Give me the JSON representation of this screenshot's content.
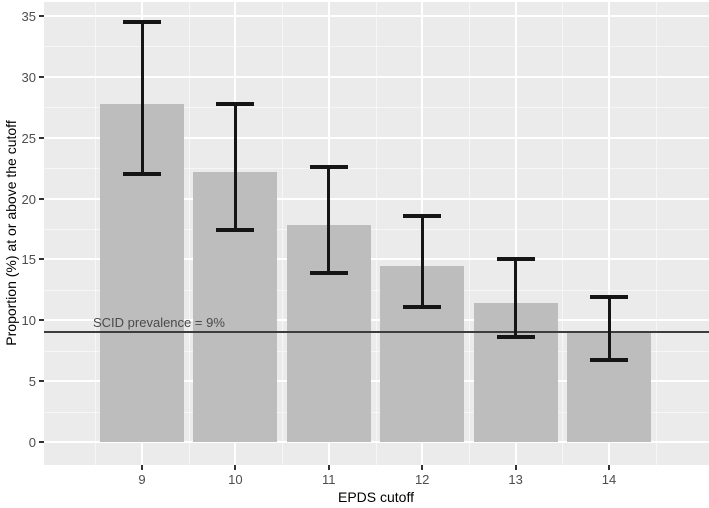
{
  "figure": {
    "background": "#ffffff",
    "panel_background": "#ebebeb",
    "gridline_color": "#ffffff",
    "tick_color": "#333333",
    "axis_text_color": "#4d4d4d"
  },
  "chart_data": {
    "type": "bar",
    "title": "",
    "xlabel": "EPDS cutoff",
    "ylabel": "Proportion (%) at or above the cutoff",
    "categories": [
      "9",
      "10",
      "11",
      "12",
      "13",
      "14"
    ],
    "values": [
      27.8,
      22.2,
      17.8,
      14.5,
      11.4,
      9.0
    ],
    "error_low": [
      22.0,
      17.4,
      13.9,
      11.1,
      8.6,
      6.7
    ],
    "error_high": [
      34.5,
      27.8,
      22.6,
      18.6,
      15.0,
      11.9
    ],
    "ylim": [
      0,
      35
    ],
    "yticks": [
      0,
      5,
      10,
      15,
      20,
      25,
      30,
      35
    ],
    "ytick_minor_step": 2.5,
    "grid": true,
    "legend_position": "none",
    "bar_color": "#bdbdbd",
    "error_bar_color": "#151515",
    "reference_line": {
      "value": 9,
      "label": "SCID prevalence = 9%",
      "color": "#3c3c3c"
    }
  }
}
